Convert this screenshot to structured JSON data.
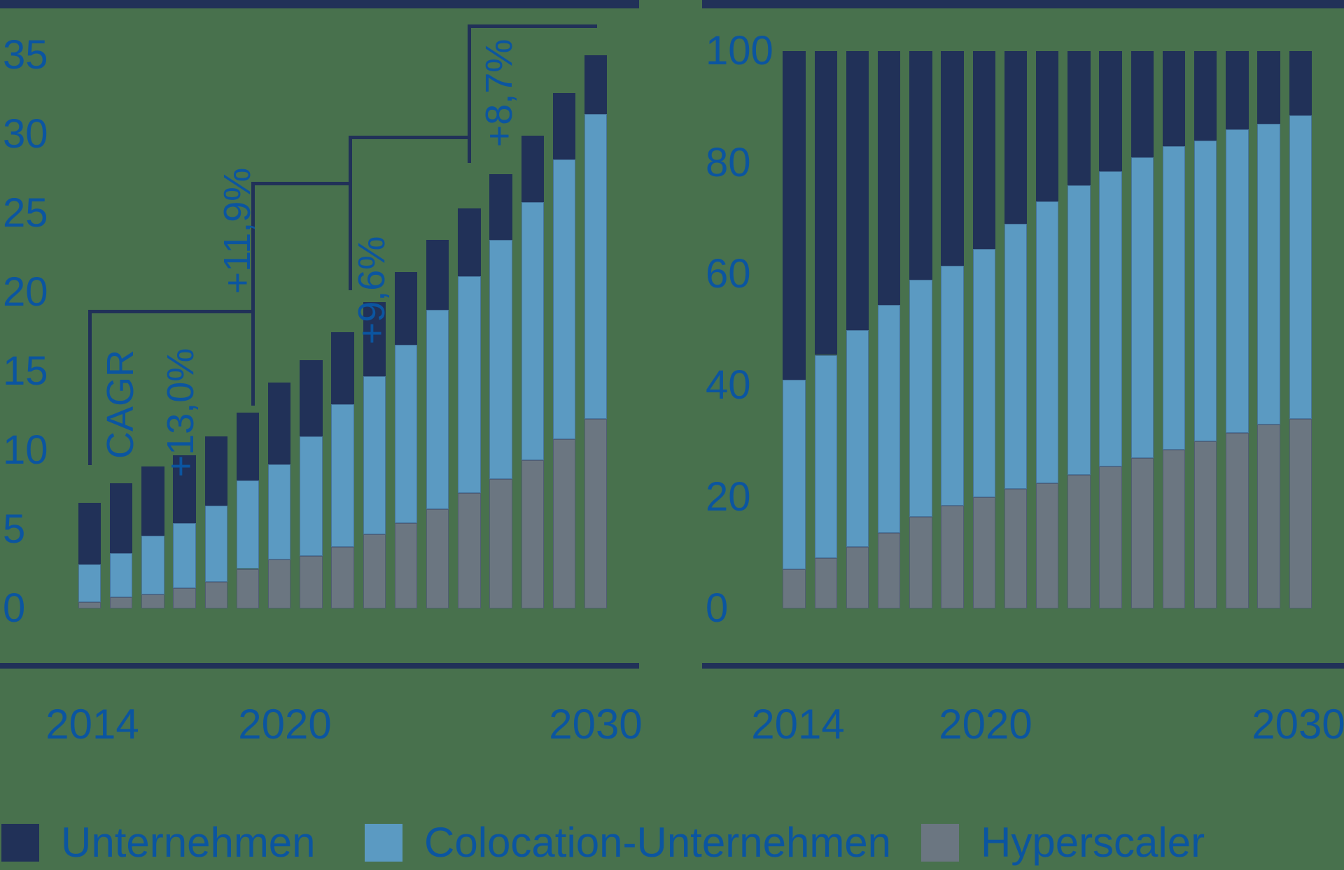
{
  "background_color": "#48714d",
  "colors": {
    "navy": "#213158",
    "light_blue": "#5b9ac2",
    "grey": "#6b7681",
    "text_blue": "#0b55a0"
  },
  "annotations": {
    "cagr_title": "CAGR",
    "cagr_1": "+13,0%",
    "cagr_2": "+11,9%",
    "cagr_3": "+9,6%",
    "cagr_4": "+8,7%"
  },
  "legend": {
    "items": [
      {
        "label": "Unternehmen",
        "color": "#213158"
      },
      {
        "label": "Colocation-Unternehmen",
        "color": "#5b9ac2"
      },
      {
        "label": "Hyperscaler",
        "color": "#6b7681"
      }
    ]
  },
  "chart_data": [
    {
      "type": "bar",
      "stacked": true,
      "title": "",
      "xlabel": "",
      "ylabel": "",
      "ylim": [
        0,
        35
      ],
      "grid": false,
      "y_ticks": [
        "35",
        "30",
        "25",
        "20",
        "15",
        "10",
        "5",
        "0"
      ],
      "x_ticks": [
        "2014",
        "2020",
        "2030"
      ],
      "x": [
        2014,
        2015,
        2016,
        2017,
        2018,
        2019,
        2020,
        2021,
        2022,
        2023,
        2024,
        2025,
        2026,
        2027,
        2028,
        2029,
        2030
      ],
      "series": [
        {
          "name": "Hyperscaler",
          "color": "#6b7681",
          "values": [
            0.4,
            0.7,
            0.9,
            1.3,
            1.7,
            2.5,
            3.1,
            3.3,
            3.9,
            4.7,
            5.4,
            6.3,
            7.3,
            8.2,
            9.4,
            10.7,
            12.0
          ]
        },
        {
          "name": "Colocation-Unternehmen",
          "color": "#5b9ac2",
          "values": [
            2.4,
            2.8,
            3.7,
            4.1,
            4.8,
            5.6,
            6.0,
            7.6,
            9.0,
            10.0,
            11.3,
            12.6,
            13.7,
            15.1,
            16.3,
            17.7,
            19.3
          ]
        },
        {
          "name": "Unternehmen",
          "color": "#213158",
          "values": [
            3.9,
            4.4,
            4.4,
            4.3,
            4.4,
            4.3,
            5.2,
            4.8,
            4.6,
            4.7,
            4.6,
            4.4,
            4.3,
            4.2,
            4.2,
            4.2,
            3.7
          ]
        }
      ],
      "annotations": [
        "CAGR",
        "+13,0%",
        "+11,9%",
        "+9,6%",
        "+8,7%"
      ]
    },
    {
      "type": "bar",
      "stacked": true,
      "title": "",
      "xlabel": "",
      "ylabel": "",
      "ylim": [
        0,
        100
      ],
      "grid": false,
      "y_ticks": [
        "100",
        "80",
        "60",
        "40",
        "20",
        "0"
      ],
      "x_ticks": [
        "2014",
        "2020",
        "2030"
      ],
      "x": [
        2014,
        2015,
        2016,
        2017,
        2018,
        2019,
        2020,
        2021,
        2022,
        2023,
        2024,
        2025,
        2026,
        2027,
        2028,
        2029,
        2030
      ],
      "series": [
        {
          "name": "Hyperscaler",
          "color": "#6b7681",
          "values": [
            7,
            9,
            11,
            13.5,
            16.5,
            18.5,
            20,
            21.5,
            22.5,
            24,
            25.5,
            27,
            28.5,
            30,
            31.5,
            33,
            34
          ]
        },
        {
          "name": "Colocation-Unternehmen",
          "color": "#5b9ac2",
          "values": [
            34,
            36.5,
            39,
            41,
            42.5,
            43,
            44.5,
            47.5,
            50.5,
            52,
            53,
            54,
            54.5,
            54,
            54.5,
            54,
            54.5
          ]
        },
        {
          "name": "Unternehmen",
          "color": "#213158",
          "values": [
            59,
            54.5,
            50,
            45.5,
            41,
            38.5,
            35.5,
            31,
            27,
            24,
            21.5,
            19,
            17,
            16,
            14,
            13,
            11.5
          ]
        }
      ]
    }
  ]
}
